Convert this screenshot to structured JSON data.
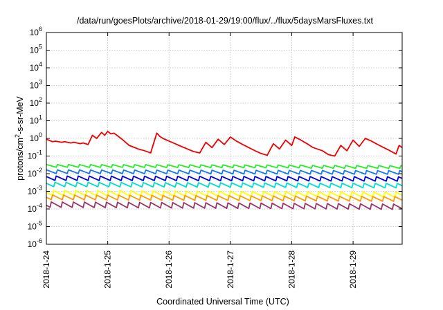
{
  "chart_data": {
    "type": "line",
    "title": "/data/run/goesPlots/archive/2018-01-29/19:00/flux/../flux/5daysMarsFluxes.txt",
    "xlabel": "Coordinated Universal Time (UTC)",
    "ylabel": {
      "pre": "protons/cm",
      "sup": "2",
      "post": "-s-sr-MeV"
    },
    "y_scale": "log",
    "ylim_exponents": [
      -6,
      6
    ],
    "y_ticks": [
      {
        "base": "10",
        "exp": "-6"
      },
      {
        "base": "10",
        "exp": "-5"
      },
      {
        "base": "10",
        "exp": "-4"
      },
      {
        "base": "10",
        "exp": "-3"
      },
      {
        "base": "10",
        "exp": "-2"
      },
      {
        "base": "10",
        "exp": "-1"
      },
      {
        "base": "10",
        "exp": "0"
      },
      {
        "base": "10",
        "exp": "1"
      },
      {
        "base": "10",
        "exp": "2"
      },
      {
        "base": "10",
        "exp": "3"
      },
      {
        "base": "10",
        "exp": "4"
      },
      {
        "base": "10",
        "exp": "5"
      },
      {
        "base": "10",
        "exp": "6"
      }
    ],
    "x_ticks": [
      "2018-1-24",
      "2018-1-25",
      "2018-1-26",
      "2018-1-27",
      "2018-1-28",
      "2018-1-29"
    ],
    "xlim_days": [
      0,
      5.8
    ],
    "grid": true,
    "legend": "none",
    "series": [
      {
        "color": "#ee0000",
        "x": [
          0,
          0.1,
          0.15,
          0.25,
          0.3,
          0.4,
          0.45,
          0.55,
          0.6,
          0.68,
          0.75,
          0.82,
          0.9,
          0.95,
          1.0,
          1.05,
          1.1,
          1.15,
          1.25,
          1.35,
          1.5,
          1.6,
          1.7,
          1.8,
          1.85,
          1.9,
          2.0,
          2.1,
          2.2,
          2.3,
          2.4,
          2.5,
          2.6,
          2.7,
          2.8,
          2.9,
          3.0,
          3.1,
          3.2,
          3.3,
          3.4,
          3.5,
          3.6,
          3.7,
          3.8,
          3.9,
          4.0,
          4.05,
          4.15,
          4.25,
          4.35,
          4.5,
          4.6,
          4.7,
          4.8,
          4.9,
          5.0,
          5.1,
          5.2,
          5.3,
          5.4,
          5.5,
          5.6,
          5.7,
          5.75,
          5.8
        ],
        "y": [
          0.9,
          0.65,
          0.7,
          0.6,
          0.65,
          0.55,
          0.6,
          0.5,
          0.55,
          0.45,
          1.5,
          1.0,
          2.2,
          1.5,
          2.5,
          1.8,
          2.0,
          1.5,
          0.8,
          0.4,
          0.25,
          0.2,
          0.15,
          2.0,
          1.3,
          1.0,
          0.7,
          0.5,
          0.35,
          0.25,
          0.18,
          0.15,
          0.6,
          0.3,
          0.9,
          0.45,
          1.2,
          0.7,
          0.45,
          0.3,
          0.2,
          0.14,
          0.11,
          0.5,
          0.25,
          0.8,
          0.4,
          1.2,
          0.8,
          0.5,
          0.3,
          0.2,
          0.12,
          0.1,
          0.4,
          0.2,
          0.8,
          0.35,
          1.0,
          0.7,
          0.45,
          0.3,
          0.2,
          0.13,
          0.4,
          0.3
        ]
      },
      {
        "color": "#22ee22",
        "base": 0.025,
        "amp": 1.5,
        "phase": 0.0,
        "trend": 0.9
      },
      {
        "color": "#1177ee",
        "base": 0.012,
        "amp": 1.7,
        "phase": 0.1,
        "trend": 0.9
      },
      {
        "color": "#0000dd",
        "base": 0.005,
        "amp": 1.9,
        "phase": 0.2,
        "trend": 0.9
      },
      {
        "color": "#00ddcc",
        "base": 0.0022,
        "amp": 1.9,
        "phase": 0.3,
        "trend": 0.85
      },
      {
        "color": "#ffff00",
        "base": 0.0007,
        "amp": 2.1,
        "phase": 0.4,
        "trend": 0.8
      },
      {
        "color": "#ff9900",
        "base": 0.0004,
        "amp": 2.0,
        "phase": 0.5,
        "trend": 0.8
      },
      {
        "color": "#993366",
        "base": 0.00015,
        "amp": 2.2,
        "phase": 0.6,
        "trend": 0.75
      }
    ]
  }
}
